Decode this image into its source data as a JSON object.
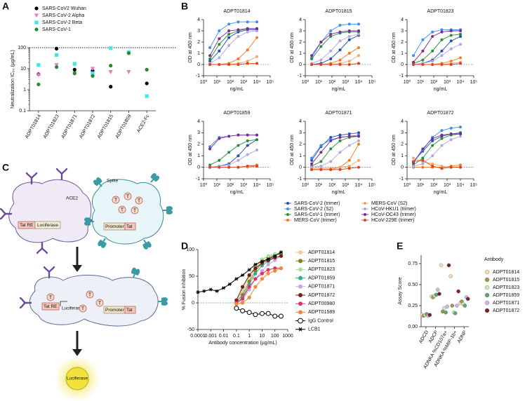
{
  "chart_data": [
    {
      "type": "strip",
      "panel": "A",
      "y_label": "Neutralization IC₅₀ (µg/mL)",
      "log_y": true,
      "ylim": [
        0.1,
        100
      ],
      "yticks": [
        0.1,
        1,
        10,
        100
      ],
      "threshold": 100,
      "categories": [
        "ADPT01814",
        "ADPT01823",
        "ADPT01871",
        "ADPT01872",
        "ADPT01815",
        "ADPT01859",
        "ACE2-Fc"
      ],
      "series": [
        {
          "name": "SARS-CoV2 Wuhan",
          "color": "#000000",
          "marker": "circle",
          "values": [
            5.5,
            90,
            9,
            8,
            1.4,
            60,
            2
          ]
        },
        {
          "name": "SARS-CoV-2 Alpha",
          "color": "#e87ac8",
          "marker": "triangle-down",
          "values": [
            5,
            15,
            6,
            10,
            7,
            7,
            null
          ]
        },
        {
          "name": "SARS-CoV-2 Beta",
          "color": "#3ee6f0",
          "marker": "square",
          "values": [
            15,
            45,
            17,
            6,
            95,
            60,
            0.5
          ]
        },
        {
          "name": "SARS-CoV-1",
          "color": "#2a8a2a",
          "marker": "circle",
          "values": [
            1.8,
            12,
            6,
            4.5,
            14,
            55,
            9
          ]
        }
      ]
    },
    {
      "type": "facet",
      "panel": "B",
      "x_label": "ng/mL",
      "y_label": "OD at 450 nm",
      "log_x": true,
      "panels": [
        "ADPT01814",
        "ADPT01815",
        "ADPT01823",
        "ADPT01859",
        "ADPT01871",
        "ADPT01872"
      ],
      "xlim": [
        1,
        100000
      ],
      "xticks": [
        {
          "value": 1,
          "label": "10⁰"
        },
        {
          "value": 10,
          "label": "10¹"
        },
        {
          "value": 100,
          "label": "10²"
        },
        {
          "value": 1000,
          "label": "10³"
        },
        {
          "value": 10000,
          "label": "10⁴"
        },
        {
          "value": 100000,
          "label": "10⁵"
        }
      ],
      "ylim": [
        -1,
        4
      ],
      "yticks": [
        -1,
        0,
        1,
        2,
        3,
        4
      ],
      "x": [
        3,
        15,
        80,
        400,
        2000,
        10000
      ],
      "series": [
        {
          "name": "SARS-CoV-2 (trimer)",
          "color": "#1f4fb0",
          "values": [
            [
              0.3,
              1.2,
              2.4,
              2.9,
              3.1,
              3.1
            ],
            [
              0,
              0.1,
              0.5,
              1.3,
              2.2,
              2.6
            ],
            [
              0,
              0.1,
              0.4,
              1.2,
              2.1,
              2.5
            ],
            [
              0,
              0.1,
              0.3,
              1.0,
              1.9,
              2.4
            ],
            [
              0.6,
              1.8,
              2.6,
              2.8,
              2.9,
              3.0
            ],
            [
              0.5,
              1.4,
              2.3,
              2.7,
              2.9,
              3.0
            ]
          ]
        },
        {
          "name": "SARS-CoV-2 (S2)",
          "color": "#3d8ef0",
          "values": [
            [
              1.5,
              3.0,
              3.6,
              3.8,
              3.8,
              3.8
            ],
            [
              0.6,
              2.0,
              3.0,
              3.5,
              3.6,
              3.6
            ],
            [
              0.8,
              2.2,
              2.9,
              3.1,
              3.1,
              3.1
            ],
            [
              1.8,
              2.6,
              2.7,
              2.8,
              2.8,
              2.8
            ],
            [
              0.8,
              1.9,
              2.4,
              2.6,
              2.7,
              2.8
            ],
            [
              0.4,
              1.5,
              2.6,
              3.2,
              3.4,
              3.5
            ]
          ]
        },
        {
          "name": "SARS-CoV-1 (trimer)",
          "color": "#2c8a3c",
          "values": [
            [
              0.5,
              1.8,
              2.7,
              3.0,
              3.2,
              3.2
            ],
            [
              0.5,
              1.6,
              2.5,
              2.8,
              2.9,
              2.9
            ],
            [
              0.1,
              0.4,
              1.2,
              2.2,
              2.6,
              2.7
            ],
            [
              0.2,
              0.6,
              1.3,
              1.9,
              2.3,
              2.4
            ],
            [
              0.1,
              0.5,
              1.6,
              2.3,
              2.6,
              2.7
            ],
            [
              0.2,
              0.8,
              1.9,
              2.5,
              2.8,
              2.9
            ]
          ]
        },
        {
          "name": "MERS-CoV (trimer)",
          "color": "#f07c1e",
          "values": [
            [
              0,
              0,
              0.1,
              0.5,
              1.3,
              2.4
            ],
            [
              0,
              0,
              0.1,
              0.4,
              1.0,
              1.5
            ],
            [
              0,
              0,
              0,
              0.1,
              0.3,
              0.6
            ],
            [
              0,
              0,
              0,
              0,
              0.1,
              0.2
            ],
            [
              -0.2,
              -0.2,
              -0.2,
              0,
              0.6,
              2.0
            ],
            [
              0,
              0,
              0,
              0,
              0.1,
              0.2
            ]
          ]
        },
        {
          "name": "MERS-CoV (S2)",
          "color": "#f6a46c",
          "values": [
            [
              0,
              0,
              0,
              0.1,
              0.3,
              0.7
            ],
            [
              0,
              0,
              0,
              0.1,
              0.3,
              0.8
            ],
            [
              0,
              0,
              0,
              0,
              0.1,
              0.2
            ],
            [
              0,
              0,
              0,
              0,
              0,
              0.1
            ],
            [
              -0.1,
              -0.1,
              -0.1,
              0,
              0.1,
              0.6
            ],
            [
              0.8,
              0.5,
              0.3,
              0.1,
              0,
              0
            ]
          ]
        },
        {
          "name": "HCoV-HKU1 (trimer)",
          "color": "#b3a4e6",
          "values": [
            [
              0.1,
              0.6,
              1.7,
              2.5,
              2.9,
              3.0
            ],
            [
              0.1,
              0.4,
              1.2,
              2.1,
              2.5,
              2.7
            ],
            [
              0,
              0.1,
              0.3,
              0.8,
              1.4,
              1.8
            ],
            [
              0,
              0.1,
              0.2,
              0.6,
              1.1,
              1.5
            ],
            [
              0,
              0.1,
              0.5,
              1.3,
              1.9,
              2.3
            ],
            [
              0.1,
              0.3,
              1.0,
              1.9,
              2.4,
              2.7
            ]
          ]
        },
        {
          "name": "HCoV-OC43 (trimer)",
          "color": "#7a2a90",
          "values": [
            [
              0.8,
              2.3,
              3.0,
              3.1,
              3.2,
              3.2
            ],
            [
              0.8,
              2.0,
              2.7,
              2.9,
              3.0,
              3.0
            ],
            [
              0.2,
              1.2,
              2.5,
              2.9,
              3.0,
              3.0
            ],
            [
              1.6,
              2.5,
              2.7,
              2.8,
              2.8,
              2.8
            ],
            [
              0.3,
              1.3,
              2.3,
              2.6,
              2.7,
              2.7
            ],
            [
              0.4,
              1.6,
              2.5,
              2.8,
              2.9,
              2.9
            ]
          ]
        },
        {
          "name": "HCoV-229E (trimer)",
          "color": "#e2401c",
          "values": [
            [
              0,
              0,
              0,
              0,
              0.1,
              0.1
            ],
            [
              0,
              0,
              0,
              0,
              0,
              0.1
            ],
            [
              0,
              0,
              0,
              0,
              0,
              0.1
            ],
            [
              0,
              0,
              0,
              0,
              0.1,
              0.1
            ],
            [
              -0.2,
              -0.2,
              -0.2,
              -0.2,
              -0.1,
              0
            ],
            [
              0.5,
              0.6,
              0.1,
              -0.1,
              0,
              0
            ]
          ]
        }
      ]
    },
    {
      "type": "line",
      "panel": "D",
      "x_label": "Antibody concentration (µg/mL)",
      "y_label": "% Fusion inhibition",
      "log_x": true,
      "xlim": [
        0.0001,
        1000
      ],
      "xticks": [
        0.0001,
        0.001,
        0.01,
        0.1,
        1,
        10,
        100,
        1000
      ],
      "ylim": [
        -50,
        100
      ],
      "yticks": [
        -50,
        0,
        50,
        100
      ],
      "series": [
        {
          "name": "ADPT01814",
          "color": "#f7c99b",
          "marker": "circle",
          "x": [
            0.1,
            0.3,
            1,
            3,
            10,
            30,
            100,
            300
          ],
          "values": [
            5,
            20,
            45,
            65,
            80,
            88,
            92,
            95
          ]
        },
        {
          "name": "ADPT01815",
          "color": "#8a7a1e",
          "marker": "circle",
          "x": [
            0.1,
            0.3,
            1,
            3,
            10,
            30,
            100,
            300
          ],
          "values": [
            2,
            15,
            40,
            60,
            75,
            85,
            90,
            92
          ]
        },
        {
          "name": "ADPT01823",
          "color": "#a8e0a0",
          "marker": "circle",
          "x": [
            0.1,
            0.3,
            1,
            3,
            10,
            30,
            100,
            300
          ],
          "values": [
            3,
            25,
            50,
            70,
            82,
            88,
            92,
            95
          ]
        },
        {
          "name": "ADPT01859",
          "color": "#3aa88a",
          "marker": "circle",
          "x": [
            0.1,
            0.3,
            1,
            3,
            10,
            30,
            100,
            300
          ],
          "values": [
            0,
            10,
            35,
            55,
            70,
            78,
            85,
            88
          ]
        },
        {
          "name": "ADPT01871",
          "color": "#c9a8e0",
          "marker": "circle",
          "x": [
            0.1,
            0.3,
            1,
            3,
            10,
            30,
            100,
            300
          ],
          "values": [
            0,
            5,
            25,
            45,
            60,
            72,
            80,
            88
          ]
        },
        {
          "name": "ADPT01872",
          "color": "#7a1a1a",
          "marker": "circle",
          "x": [
            0.1,
            0.3,
            1,
            3,
            10,
            30,
            100,
            300
          ],
          "values": [
            5,
            30,
            52,
            65,
            75,
            80,
            85,
            88
          ]
        },
        {
          "name": "ADPT00980",
          "color": "#e0306a",
          "marker": "circle",
          "x": [
            0.1,
            0.3,
            1,
            3,
            10,
            30,
            100,
            300
          ],
          "values": [
            0,
            8,
            30,
            45,
            55,
            62,
            65,
            65
          ]
        },
        {
          "name": "ADPT01589",
          "color": "#f08a3a",
          "marker": "circle",
          "x": [
            0.1,
            0.3,
            1,
            3,
            10,
            30,
            100,
            300
          ],
          "values": [
            -2,
            0,
            10,
            30,
            45,
            55,
            60,
            65
          ]
        },
        {
          "name": "IgG Control",
          "color": "#000000",
          "marker": "circle-open",
          "x": [
            0.1,
            0.3,
            1,
            3,
            10,
            30,
            100,
            300
          ],
          "values": [
            -10,
            -15,
            -18,
            -22,
            -20,
            -20,
            -25,
            -25
          ]
        },
        {
          "name": "LCB1",
          "color": "#000000",
          "marker": "asterisk",
          "x": [
            0.0001,
            0.0003,
            0.001,
            0.003,
            0.01,
            0.03,
            0.1,
            0.3,
            1,
            3,
            10,
            30,
            100,
            300
          ],
          "values": [
            20,
            22,
            25,
            22,
            28,
            35,
            45,
            52,
            62,
            72,
            78,
            82,
            88,
            95
          ]
        }
      ]
    },
    {
      "type": "strip",
      "panel": "E",
      "y_label": "Assay Score",
      "legend_title": "Antibody",
      "ylim": [
        0,
        0.85
      ],
      "yticks": [
        {
          "value": 0,
          "label": "0.00"
        },
        {
          "value": 0.25,
          "label": "0.25"
        },
        {
          "value": 0.5,
          "label": "0.50"
        },
        {
          "value": 0.75,
          "label": "0.75"
        }
      ],
      "categories": [
        "ADCD",
        "ADCP",
        "ADNKA %CD107a+",
        "ADNKA %MIP-1b+",
        "ADNP"
      ],
      "series": [
        {
          "name": "ADPT01814",
          "color": "#f3dcae",
          "marker": "circle",
          "values": [
            0.14,
            0.36,
            0.73,
            0.6,
            0.28
          ]
        },
        {
          "name": "ADPT01815",
          "color": "#9a9a48",
          "marker": "circle",
          "values": [
            0.13,
            0.35,
            0.18,
            0.25,
            0.3
          ]
        },
        {
          "name": "ADPT01823",
          "color": "#c8e8c0",
          "marker": "circle",
          "values": [
            0.14,
            0.37,
            0.22,
            0.17,
            0.27
          ]
        },
        {
          "name": "ADPT01859",
          "color": "#5aa870",
          "marker": "circle",
          "values": [
            0.15,
            0.38,
            0.17,
            0.16,
            0.25
          ]
        },
        {
          "name": "ADPT01871",
          "color": "#c8b8e8",
          "marker": "circle",
          "values": [
            0.13,
            0.44,
            0.24,
            0.25,
            0.35
          ]
        },
        {
          "name": "ADPT01872",
          "color": "#7a2030",
          "marker": "circle",
          "values": [
            0.14,
            0.39,
            0.73,
            0.42,
            0.33
          ]
        }
      ]
    }
  ],
  "diagram": {
    "panel": "C",
    "ace2": "ACE2",
    "spike": "Spike",
    "tat_re": "Tat RE",
    "luciferase": "Luciferase",
    "promoter": "Promoter",
    "tat": "Tat",
    "tat_protein": "T"
  }
}
